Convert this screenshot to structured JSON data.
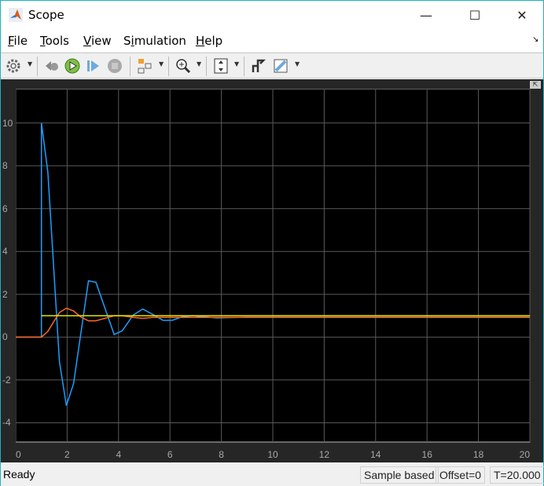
{
  "window": {
    "title": "Scope",
    "minimize": "—",
    "maximize": "☐",
    "close": "✕"
  },
  "menu": [
    {
      "label": "File",
      "key": "F",
      "rest": "ile"
    },
    {
      "label": "Tools",
      "key": "T",
      "rest": "ools"
    },
    {
      "label": "View",
      "key": "V",
      "rest": "iew"
    },
    {
      "label": "Simulation",
      "pre": "S",
      "key": "i",
      "rest": "mulation"
    },
    {
      "label": "Help",
      "key": "H",
      "rest": "elp"
    }
  ],
  "toolbar": [
    "settings-icon",
    "step-back-icon",
    "run-icon",
    "step-forward-icon",
    "stop-icon",
    "highlight-block-icon",
    "zoom-in-icon",
    "scale-axes-icon",
    "triggers-icon",
    "measurements-icon"
  ],
  "status": {
    "left": "Ready",
    "mode": "Sample based",
    "offset": "Offset=0",
    "time": "T=20.000"
  },
  "colors": {
    "bg": "#000000",
    "grid": "#5a5a5a",
    "series": [
      "#00a6ff",
      "#ff6b1a",
      "#e6e600"
    ]
  },
  "chart_data": {
    "type": "line",
    "xlim": [
      0,
      20
    ],
    "ylim": [
      -4.9,
      11.6
    ],
    "xticks": [
      "0",
      "2",
      "4",
      "6",
      "8",
      "10",
      "12",
      "14",
      "16",
      "18",
      "20"
    ],
    "yticks": [
      "-4",
      "-2",
      "0",
      "2",
      "4",
      "6",
      "8",
      "10"
    ],
    "grid": true,
    "series": [
      {
        "color": "#1a9fff",
        "x": [
          0,
          1,
          1,
          1.25,
          1.7,
          1.97,
          2.25,
          2.83,
          3.12,
          3.83,
          4.14,
          4.57,
          4.94,
          5.33,
          5.74,
          6.1,
          6.5,
          6.9,
          7.8,
          9,
          20
        ],
        "y": [
          0,
          0,
          10,
          7.7,
          -1.14,
          -3.2,
          -2.17,
          2.63,
          2.56,
          0.12,
          0.29,
          1.03,
          1.31,
          1.06,
          0.78,
          0.79,
          0.96,
          1.0,
          0.9,
          0.93,
          0.93
        ]
      },
      {
        "color": "#ff6a1f",
        "x": [
          0,
          1,
          1.25,
          1.7,
          1.97,
          2.25,
          2.53,
          2.83,
          3.12,
          3.83,
          4.14,
          4.57,
          4.94,
          5.33,
          20
        ],
        "y": [
          0,
          0,
          0.27,
          1.15,
          1.35,
          1.22,
          0.94,
          0.76,
          0.76,
          1.0,
          1.0,
          0.92,
          0.88,
          0.92,
          0.92
        ]
      },
      {
        "color": "#e6e600",
        "x": [
          1,
          20
        ],
        "y": [
          1,
          1
        ]
      }
    ]
  }
}
